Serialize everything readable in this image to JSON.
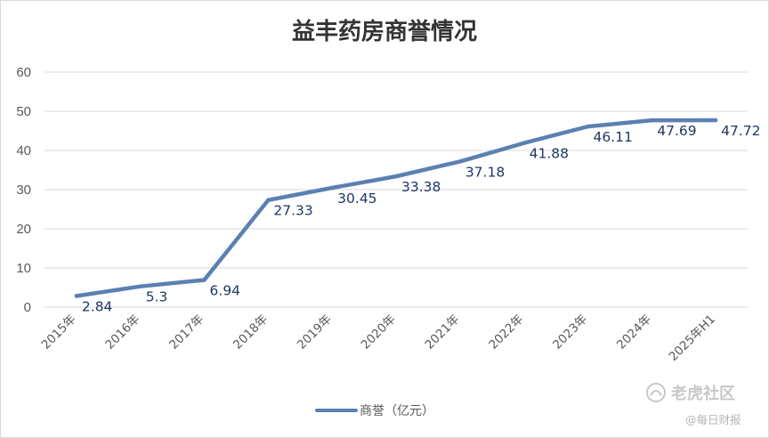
{
  "chart_data": {
    "type": "line",
    "title": "益丰药房商誉情况",
    "categories": [
      "2015年",
      "2016年",
      "2017年",
      "2018年",
      "2019年",
      "2020年",
      "2021年",
      "2022年",
      "2023年",
      "2024年",
      "2025年H1"
    ],
    "series": [
      {
        "name": "商誉（亿元）",
        "values": [
          2.84,
          5.3,
          6.94,
          27.33,
          30.45,
          33.38,
          37.18,
          41.88,
          46.11,
          47.69,
          47.72
        ],
        "labels": [
          "2.84",
          "5.3",
          "6.94",
          "27.33",
          "30.45",
          "33.38",
          "37.18",
          "41.88",
          "46.11",
          "47.69",
          "47.72"
        ]
      }
    ],
    "ylim": [
      0,
      60
    ],
    "yticks": [
      "0",
      "10",
      "20",
      "30",
      "40",
      "50",
      "60"
    ],
    "grid": true,
    "legend": "bottom",
    "line_color": "#5b80b2",
    "label_color": "#1f3864"
  },
  "watermark": {
    "main": "老虎社区",
    "sub": "@每日财报",
    "icon": "tiger-community-logo-icon"
  }
}
